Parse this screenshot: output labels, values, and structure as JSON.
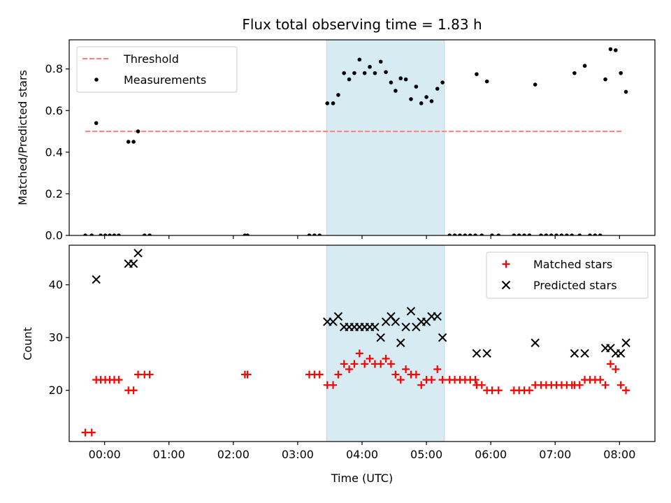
{
  "chart_data": [
    {
      "type": "scatter",
      "title": "Flux total observing time = 1.83 h",
      "xlabel": "",
      "ylabel": "Matched/Predicted stars",
      "xlim": [
        -0.55,
        8.55
      ],
      "ylim": [
        0.0,
        0.94
      ],
      "yticks": [
        0.0,
        0.2,
        0.4,
        0.6,
        0.8
      ],
      "ytick_labels": [
        "0.0",
        "0.2",
        "0.4",
        "0.6",
        "0.8"
      ],
      "legend_position": "top-left",
      "shaded_span": {
        "x_start": 3.45,
        "x_end": 5.28,
        "color": "#add8e6"
      },
      "series": [
        {
          "name": "Threshold",
          "kind": "dashed-line",
          "color": "#ff7f7f",
          "points": [
            [
              -0.3,
              0.5
            ],
            [
              8.05,
              0.5
            ]
          ]
        },
        {
          "name": "Measurements",
          "kind": "dot",
          "color": "#000000",
          "points": [
            [
              -0.3,
              0.0
            ],
            [
              -0.2,
              0.0
            ],
            [
              -0.13,
              0.54
            ],
            [
              -0.06,
              0.0
            ],
            [
              0.01,
              0.0
            ],
            [
              0.08,
              0.0
            ],
            [
              0.15,
              0.0
            ],
            [
              0.22,
              0.0
            ],
            [
              0.37,
              0.45
            ],
            [
              0.45,
              0.45
            ],
            [
              0.52,
              0.5
            ],
            [
              0.62,
              0.0
            ],
            [
              0.7,
              0.0
            ],
            [
              2.18,
              0.0
            ],
            [
              2.22,
              0.0
            ],
            [
              3.18,
              0.0
            ],
            [
              3.26,
              0.0
            ],
            [
              3.34,
              0.0
            ],
            [
              3.46,
              0.635
            ],
            [
              3.55,
              0.635
            ],
            [
              3.63,
              0.675
            ],
            [
              3.72,
              0.78
            ],
            [
              3.8,
              0.75
            ],
            [
              3.88,
              0.78
            ],
            [
              3.96,
              0.845
            ],
            [
              4.04,
              0.78
            ],
            [
              4.12,
              0.81
            ],
            [
              4.2,
              0.78
            ],
            [
              4.29,
              0.835
            ],
            [
              4.37,
              0.785
            ],
            [
              4.45,
              0.735
            ],
            [
              4.52,
              0.695
            ],
            [
              4.6,
              0.755
            ],
            [
              4.68,
              0.75
            ],
            [
              4.76,
              0.655
            ],
            [
              4.84,
              0.715
            ],
            [
              4.92,
              0.635
            ],
            [
              5.0,
              0.665
            ],
            [
              5.08,
              0.645
            ],
            [
              5.17,
              0.705
            ],
            [
              5.25,
              0.735
            ],
            [
              5.36,
              0.0
            ],
            [
              5.44,
              0.0
            ],
            [
              5.52,
              0.0
            ],
            [
              5.6,
              0.0
            ],
            [
              5.68,
              0.0
            ],
            [
              5.76,
              0.0
            ],
            [
              5.78,
              0.775
            ],
            [
              5.86,
              0.0
            ],
            [
              5.94,
              0.74
            ],
            [
              6.02,
              0.0
            ],
            [
              6.12,
              0.0
            ],
            [
              6.36,
              0.0
            ],
            [
              6.44,
              0.0
            ],
            [
              6.52,
              0.0
            ],
            [
              6.6,
              0.0
            ],
            [
              6.69,
              0.725
            ],
            [
              6.78,
              0.0
            ],
            [
              6.86,
              0.0
            ],
            [
              6.94,
              0.0
            ],
            [
              7.02,
              0.0
            ],
            [
              7.1,
              0.0
            ],
            [
              7.18,
              0.0
            ],
            [
              7.26,
              0.0
            ],
            [
              7.3,
              0.78
            ],
            [
              7.38,
              0.0
            ],
            [
              7.46,
              0.815
            ],
            [
              7.54,
              0.0
            ],
            [
              7.62,
              0.0
            ],
            [
              7.7,
              0.0
            ],
            [
              7.78,
              0.75
            ],
            [
              7.86,
              0.895
            ],
            [
              7.94,
              0.89
            ],
            [
              8.02,
              0.78
            ],
            [
              8.1,
              0.69
            ]
          ]
        }
      ]
    },
    {
      "type": "scatter",
      "title": "",
      "xlabel": "Time (UTC)",
      "ylabel": "Count",
      "xlim": [
        -0.55,
        8.55
      ],
      "ylim": [
        10.3,
        47.5
      ],
      "yticks": [
        20,
        30,
        40
      ],
      "ytick_labels": [
        "20",
        "30",
        "40"
      ],
      "xticks": [
        0,
        1,
        2,
        3,
        4,
        5,
        6,
        7,
        8
      ],
      "xtick_labels": [
        "00:00",
        "01:00",
        "02:00",
        "03:00",
        "04:00",
        "05:00",
        "06:00",
        "07:00",
        "08:00"
      ],
      "legend_position": "top-right",
      "shaded_span": {
        "x_start": 3.45,
        "x_end": 5.28,
        "color": "#add8e6"
      },
      "series": [
        {
          "name": "Matched stars",
          "kind": "plus",
          "color": "#ff0000",
          "points": [
            [
              -0.3,
              12
            ],
            [
              -0.2,
              12
            ],
            [
              -0.13,
              22
            ],
            [
              -0.06,
              22
            ],
            [
              0.01,
              22
            ],
            [
              0.08,
              22
            ],
            [
              0.15,
              22
            ],
            [
              0.22,
              22
            ],
            [
              0.37,
              20
            ],
            [
              0.45,
              20
            ],
            [
              0.52,
              23
            ],
            [
              0.62,
              23
            ],
            [
              0.7,
              23
            ],
            [
              2.18,
              23
            ],
            [
              2.22,
              23
            ],
            [
              3.18,
              23
            ],
            [
              3.26,
              23
            ],
            [
              3.34,
              23
            ],
            [
              3.46,
              21
            ],
            [
              3.55,
              21
            ],
            [
              3.63,
              23
            ],
            [
              3.72,
              25
            ],
            [
              3.8,
              24
            ],
            [
              3.88,
              25
            ],
            [
              3.96,
              27
            ],
            [
              4.04,
              25
            ],
            [
              4.12,
              26
            ],
            [
              4.2,
              25
            ],
            [
              4.29,
              25
            ],
            [
              4.37,
              26
            ],
            [
              4.45,
              25
            ],
            [
              4.52,
              23
            ],
            [
              4.6,
              22
            ],
            [
              4.68,
              24
            ],
            [
              4.76,
              23
            ],
            [
              4.84,
              23
            ],
            [
              4.92,
              21
            ],
            [
              5.0,
              22
            ],
            [
              5.08,
              22
            ],
            [
              5.17,
              24
            ],
            [
              5.25,
              22
            ],
            [
              5.36,
              22
            ],
            [
              5.44,
              22
            ],
            [
              5.52,
              22
            ],
            [
              5.6,
              22
            ],
            [
              5.68,
              22
            ],
            [
              5.76,
              22
            ],
            [
              5.78,
              21
            ],
            [
              5.86,
              21
            ],
            [
              5.94,
              20
            ],
            [
              6.02,
              20
            ],
            [
              6.12,
              20
            ],
            [
              6.36,
              20
            ],
            [
              6.44,
              20
            ],
            [
              6.52,
              20
            ],
            [
              6.6,
              20
            ],
            [
              6.69,
              21
            ],
            [
              6.78,
              21
            ],
            [
              6.86,
              21
            ],
            [
              6.94,
              21
            ],
            [
              7.02,
              21
            ],
            [
              7.1,
              21
            ],
            [
              7.18,
              21
            ],
            [
              7.26,
              21
            ],
            [
              7.3,
              21
            ],
            [
              7.38,
              21
            ],
            [
              7.46,
              22
            ],
            [
              7.54,
              22
            ],
            [
              7.62,
              22
            ],
            [
              7.7,
              22
            ],
            [
              7.78,
              21
            ],
            [
              7.86,
              25
            ],
            [
              7.94,
              24
            ],
            [
              8.02,
              21
            ],
            [
              8.1,
              20
            ]
          ]
        },
        {
          "name": "Predicted stars",
          "kind": "cross",
          "color": "#000000",
          "points": [
            [
              -0.13,
              41
            ],
            [
              0.37,
              44
            ],
            [
              0.45,
              44
            ],
            [
              0.52,
              46
            ],
            [
              3.46,
              33
            ],
            [
              3.55,
              33
            ],
            [
              3.63,
              34
            ],
            [
              3.72,
              32
            ],
            [
              3.8,
              32
            ],
            [
              3.88,
              32
            ],
            [
              3.96,
              32
            ],
            [
              4.04,
              32
            ],
            [
              4.12,
              32
            ],
            [
              4.2,
              32
            ],
            [
              4.29,
              30
            ],
            [
              4.37,
              33
            ],
            [
              4.45,
              34
            ],
            [
              4.52,
              33
            ],
            [
              4.6,
              29
            ],
            [
              4.68,
              32
            ],
            [
              4.76,
              35
            ],
            [
              4.84,
              32
            ],
            [
              4.92,
              33
            ],
            [
              5.0,
              33
            ],
            [
              5.08,
              34
            ],
            [
              5.17,
              34
            ],
            [
              5.25,
              30
            ],
            [
              5.78,
              27
            ],
            [
              5.94,
              27
            ],
            [
              6.69,
              29
            ],
            [
              7.3,
              27
            ],
            [
              7.46,
              27
            ],
            [
              7.78,
              28
            ],
            [
              7.86,
              28
            ],
            [
              7.94,
              27
            ],
            [
              8.02,
              27
            ],
            [
              8.1,
              29
            ]
          ]
        }
      ]
    }
  ]
}
